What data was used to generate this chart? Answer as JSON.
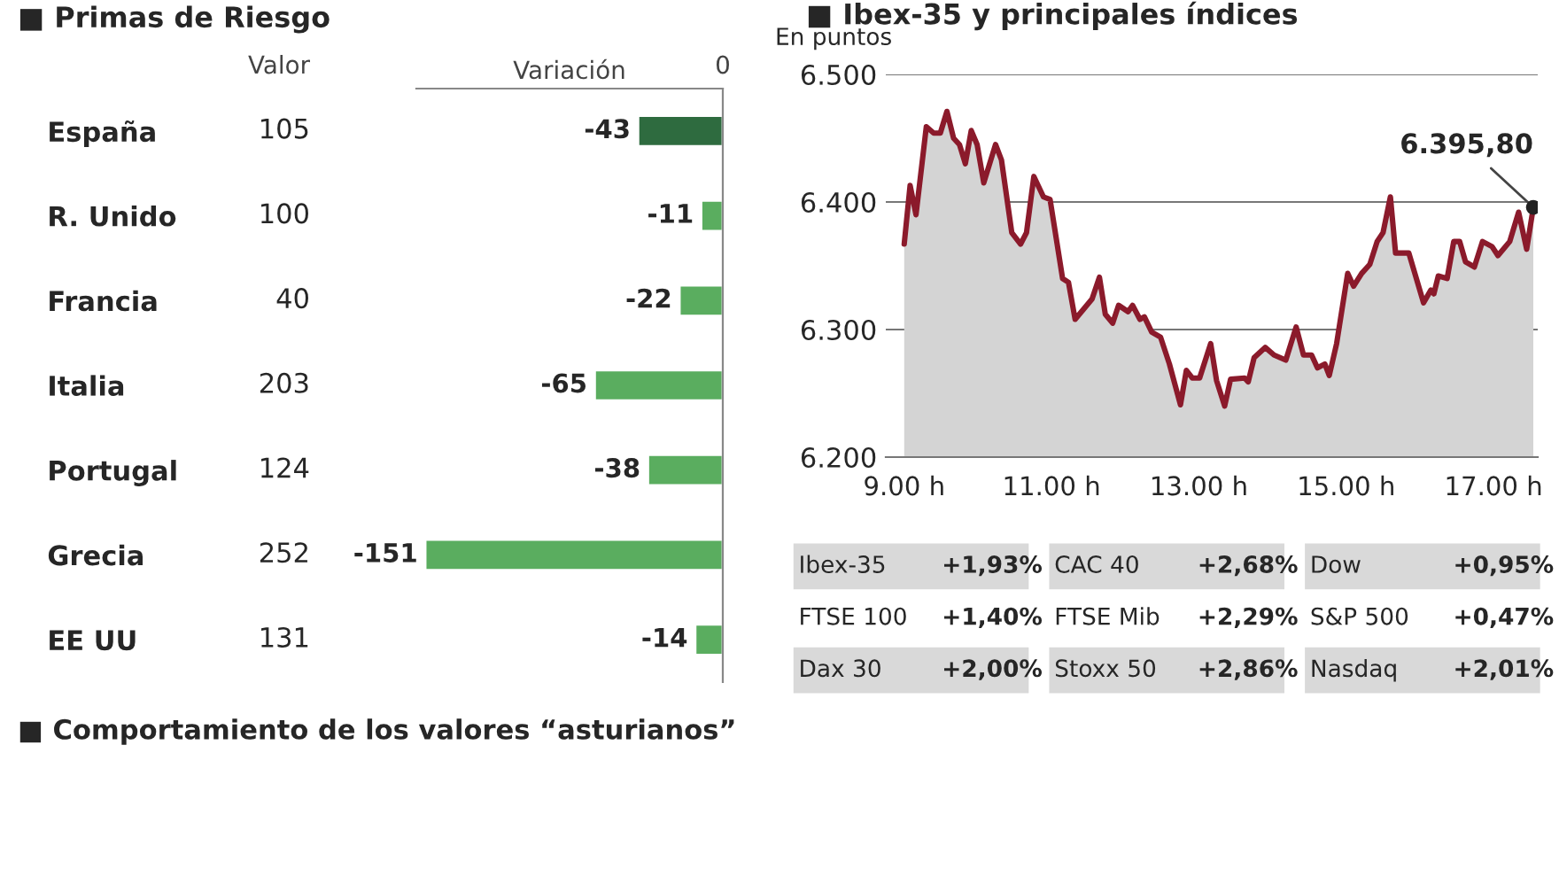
{
  "chart_data": [
    {
      "type": "bar",
      "orientation": "horizontal",
      "title": "■ Primas de Riesgo",
      "xlabel": "Variación",
      "categories": [
        "España",
        "R. Unido",
        "Francia",
        "Italia",
        "Portugal",
        "Grecia",
        "EE UU"
      ],
      "values": [
        -43,
        -11,
        -22,
        -65,
        -38,
        -151,
        -14
      ],
      "colors": [
        "#2e6b3f",
        "#5aad5f",
        "#5aad5f",
        "#5aad5f",
        "#5aad5f",
        "#5aad5f",
        "#5aad5f"
      ],
      "data_labels": true,
      "grid": false,
      "annotations": [
        "0",
        "Valor",
        "105",
        "100",
        "40",
        "203",
        "124",
        "252",
        "131"
      ]
    },
    {
      "type": "area",
      "title": "■ Ibex-35 y principales índices",
      "ylabel": "En puntos",
      "grid": "y",
      "x": [
        9.0,
        9.08,
        9.16,
        9.3,
        9.4,
        9.49,
        9.58,
        9.67,
        9.75,
        9.83,
        9.91,
        9.99,
        10.08,
        10.24,
        10.32,
        10.46,
        10.58,
        10.66,
        10.76,
        10.89,
        10.98,
        11.15,
        11.23,
        11.32,
        11.55,
        11.65,
        11.73,
        11.83,
        11.91,
        12.04,
        12.1,
        12.2,
        12.26,
        12.36,
        12.48,
        12.6,
        12.75,
        12.83,
        12.91,
        13.01,
        13.16,
        13.24,
        13.35,
        13.43,
        13.62,
        13.67,
        13.75,
        13.9,
        14.02,
        14.18,
        14.32,
        14.42,
        14.53,
        14.61,
        14.71,
        14.77,
        14.87,
        15.02,
        15.1,
        15.21,
        15.32,
        15.42,
        15.5,
        15.6,
        15.67,
        15.85,
        16.05,
        16.15,
        16.19,
        16.25,
        16.37,
        16.46,
        16.54,
        16.62,
        16.74,
        16.85,
        16.98,
        17.06,
        17.22,
        17.34,
        17.45,
        17.54
      ],
      "series": [
        {
          "color": "#8b1a2b",
          "values": [
            6367,
            6413,
            6390,
            6459,
            6454,
            6454,
            6471,
            6450,
            6445,
            6430,
            6456,
            6445,
            6415,
            6445,
            6433,
            6376,
            6367,
            6376,
            6420,
            6404,
            6402,
            6340,
            6337,
            6308,
            6324,
            6341,
            6312,
            6305,
            6319,
            6314,
            6319,
            6308,
            6310,
            6298,
            6294,
            6273,
            6241,
            6268,
            6262,
            6262,
            6289,
            6260,
            6240,
            6261,
            6262,
            6259,
            6278,
            6286,
            6280,
            6276,
            6302,
            6280,
            6280,
            6270,
            6273,
            6264,
            6289,
            6344,
            6334,
            6344,
            6351,
            6369,
            6376,
            6404,
            6360,
            6360,
            6321,
            6331,
            6328,
            6342,
            6340,
            6369,
            6369,
            6353,
            6349,
            6369,
            6365,
            6358,
            6369,
            6392,
            6363,
            6395.8
          ]
        }
      ],
      "xlim": [
        8.75,
        17.6
      ],
      "ylim": [
        6200,
        6500
      ],
      "xticks": [
        {
          "value": 9,
          "label": "9.00 h"
        },
        {
          "value": 11,
          "label": "11.00 h"
        },
        {
          "value": 13,
          "label": "13.00 h"
        },
        {
          "value": 15,
          "label": "15.00 h"
        },
        {
          "value": 17,
          "label": "17.00 h"
        }
      ],
      "yticks": [
        {
          "value": 6200,
          "label": "6.200"
        },
        {
          "value": 6300,
          "label": "6.300"
        },
        {
          "value": 6400,
          "label": "6.400"
        },
        {
          "value": 6500,
          "label": "6.500"
        }
      ],
      "annotations": [
        {
          "text": "6.395,80",
          "x": 17.54,
          "y": 6395.8
        }
      ]
    },
    {
      "type": "other",
      "categories": [
        "Ibex-35",
        "CAC 40",
        "Dow",
        "FTSE 100",
        "FTSE Mib",
        "S&P 500",
        "Dax 30",
        "Stoxx 50",
        "Nasdaq"
      ],
      "value_labels": [
        "+1,93%",
        "+2,68%",
        "+0,95%",
        "+1,40%",
        "+2,29%",
        "+0,47%",
        "+2,00%",
        "+2,86%",
        "+2,01%"
      ],
      "annotations": [
        "■ Comportamiento de los valores “asturianos”"
      ]
    }
  ]
}
